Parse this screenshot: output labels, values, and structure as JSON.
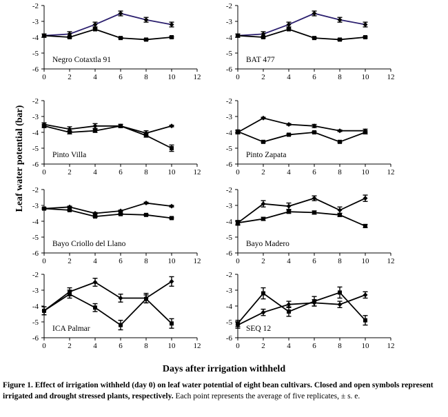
{
  "figure": {
    "ylabel": "Leaf water potential (bar)",
    "xlabel": "Days after irrigation withheld",
    "caption_bold": "Figure 1. Effect of irrigation withheld (day 0) on leaf water potential of eight bean cultivars. Closed and open symbols represent irrigated and drought stressed plants, respectively.",
    "caption_rest": " Each point represents the average of five replicates, ± s. e."
  },
  "colors": {
    "line": "#000000",
    "accent_line": "#2b1f6e",
    "axis": "#000000"
  },
  "chart_data": [
    {
      "type": "line",
      "title": "Negro Cotaxtla 91",
      "x_ticks": [
        0,
        2,
        4,
        6,
        8,
        10,
        12
      ],
      "y_ticks": [
        -2,
        -3,
        -4,
        -5,
        -6
      ],
      "xlim": [
        0,
        12
      ],
      "ylim": [
        -6,
        -2
      ],
      "series": [
        {
          "marker": "closed",
          "x": [
            0,
            2,
            4,
            6,
            8,
            10
          ],
          "values": [
            -3.9,
            -3.8,
            -3.2,
            -2.5,
            -2.9,
            -3.2
          ],
          "errors": [
            0.1,
            0.15,
            0.15,
            0.15,
            0.15,
            0.15
          ]
        },
        {
          "marker": "open",
          "x": [
            0,
            2,
            4,
            6,
            8,
            10
          ],
          "values": [
            -3.9,
            -4.0,
            -3.5,
            -4.05,
            -4.15,
            -4.0
          ],
          "errors": [
            0.1,
            0.05,
            0.05,
            0.05,
            0.05,
            0.05
          ]
        }
      ]
    },
    {
      "type": "line",
      "title": "BAT 477",
      "x_ticks": [
        0,
        2,
        4,
        6,
        8,
        10,
        12
      ],
      "y_ticks": [
        -2,
        -3,
        -4,
        -5,
        -6
      ],
      "xlim": [
        0,
        12
      ],
      "ylim": [
        -6,
        -2
      ],
      "series": [
        {
          "marker": "closed",
          "x": [
            0,
            2,
            4,
            6,
            8,
            10
          ],
          "values": [
            -3.9,
            -3.8,
            -3.2,
            -2.5,
            -2.9,
            -3.2
          ],
          "errors": [
            0.1,
            0.15,
            0.15,
            0.15,
            0.15,
            0.15
          ]
        },
        {
          "marker": "open",
          "x": [
            0,
            2,
            4,
            6,
            8,
            10
          ],
          "values": [
            -3.9,
            -4.0,
            -3.5,
            -4.05,
            -4.15,
            -4.0
          ],
          "errors": [
            0.1,
            0.05,
            0.05,
            0.05,
            0.05,
            0.05
          ]
        }
      ]
    },
    {
      "type": "line",
      "title": "Pinto Villa",
      "x_ticks": [
        0,
        2,
        4,
        6,
        8,
        10,
        12
      ],
      "y_ticks": [
        -2,
        -3,
        -4,
        -5,
        -6
      ],
      "xlim": [
        0,
        12
      ],
      "ylim": [
        -6,
        -2
      ],
      "series": [
        {
          "marker": "closed",
          "x": [
            0,
            2,
            4,
            6,
            8,
            10
          ],
          "values": [
            -3.5,
            -3.8,
            -3.6,
            -3.6,
            -4.05,
            -3.6
          ],
          "errors": [
            0.1,
            0.15,
            0.15,
            0.1,
            0.15,
            0.05
          ]
        },
        {
          "marker": "open",
          "x": [
            0,
            2,
            4,
            6,
            8,
            10
          ],
          "values": [
            -3.6,
            -4.0,
            -3.9,
            -3.6,
            -4.2,
            -5.0
          ],
          "errors": [
            0.1,
            0.1,
            0.1,
            0.1,
            0.1,
            0.2
          ]
        }
      ]
    },
    {
      "type": "line",
      "title": "Pinto Zapata",
      "x_ticks": [
        0,
        2,
        4,
        6,
        8,
        10,
        12
      ],
      "y_ticks": [
        -2,
        -3,
        -4,
        -5,
        -6
      ],
      "xlim": [
        0,
        12
      ],
      "ylim": [
        -6,
        -2
      ],
      "series": [
        {
          "marker": "closed",
          "x": [
            0,
            2,
            4,
            6,
            8,
            10
          ],
          "values": [
            -4.0,
            -3.1,
            -3.5,
            -3.6,
            -3.9,
            -3.9
          ],
          "errors": [
            0.1,
            0.05,
            0.05,
            0.1,
            0.05,
            0.1
          ]
        },
        {
          "marker": "open",
          "x": [
            0,
            2,
            4,
            6,
            8,
            10
          ],
          "values": [
            -3.95,
            -4.6,
            -4.15,
            -4.0,
            -4.6,
            -4.0
          ],
          "errors": [
            0.1,
            0.05,
            0.05,
            0.05,
            0.05,
            0.1
          ]
        }
      ]
    },
    {
      "type": "line",
      "title": "Bayo Criollo del Llano",
      "x_ticks": [
        0,
        2,
        4,
        6,
        8,
        10,
        12
      ],
      "y_ticks": [
        -2,
        -3,
        -4,
        -5,
        -6
      ],
      "xlim": [
        0,
        12
      ],
      "ylim": [
        -6,
        -2
      ],
      "series": [
        {
          "marker": "closed",
          "x": [
            0,
            2,
            4,
            6,
            8,
            10
          ],
          "values": [
            -3.2,
            -3.1,
            -3.5,
            -3.35,
            -2.85,
            -3.05
          ],
          "errors": [
            0.05,
            0.05,
            0.05,
            0.05,
            0.05,
            0.05
          ]
        },
        {
          "marker": "open",
          "x": [
            0,
            2,
            4,
            6,
            8,
            10
          ],
          "values": [
            -3.2,
            -3.3,
            -3.7,
            -3.55,
            -3.6,
            -3.8
          ],
          "errors": [
            0.05,
            0.05,
            0.05,
            0.05,
            0.05,
            0.05
          ]
        }
      ]
    },
    {
      "type": "line",
      "title": "Bayo Madero",
      "x_ticks": [
        0,
        2,
        4,
        6,
        8,
        10,
        12
      ],
      "y_ticks": [
        -2,
        -3,
        -4,
        -5,
        -6
      ],
      "xlim": [
        0,
        12
      ],
      "ylim": [
        -6,
        -2
      ],
      "series": [
        {
          "marker": "closed",
          "x": [
            0,
            2,
            4,
            6,
            8,
            10
          ],
          "values": [
            -4.1,
            -2.9,
            -3.05,
            -2.55,
            -3.3,
            -2.55
          ],
          "errors": [
            0.1,
            0.2,
            0.2,
            0.15,
            0.2,
            0.2
          ]
        },
        {
          "marker": "open",
          "x": [
            0,
            2,
            4,
            6,
            8,
            10
          ],
          "values": [
            -4.1,
            -3.85,
            -3.4,
            -3.45,
            -3.6,
            -4.3
          ],
          "errors": [
            0.15,
            0.1,
            0.1,
            0.1,
            0.1,
            0.1
          ]
        }
      ]
    },
    {
      "type": "line",
      "title": "ICA Palmar",
      "x_ticks": [
        0,
        2,
        4,
        6,
        8,
        10,
        12
      ],
      "y_ticks": [
        -2,
        -3,
        -4,
        -5,
        -6
      ],
      "xlim": [
        0,
        12
      ],
      "ylim": [
        -6,
        -2
      ],
      "series": [
        {
          "marker": "closed",
          "x": [
            0,
            2,
            4,
            6,
            8,
            10
          ],
          "values": [
            -4.3,
            -3.1,
            -2.5,
            -3.5,
            -3.5,
            -2.45
          ],
          "errors": [
            0.25,
            0.25,
            0.25,
            0.25,
            0.3,
            0.3
          ]
        },
        {
          "marker": "open",
          "x": [
            0,
            2,
            4,
            6,
            8,
            10
          ],
          "values": [
            -4.3,
            -3.25,
            -4.1,
            -5.2,
            -3.55,
            -5.1
          ],
          "errors": [
            0.25,
            0.25,
            0.25,
            0.3,
            0.25,
            0.3
          ]
        }
      ]
    },
    {
      "type": "line",
      "title": "SEQ 12",
      "x_ticks": [
        0,
        2,
        4,
        6,
        8,
        10,
        12
      ],
      "y_ticks": [
        -2,
        -3,
        -4,
        -5,
        -6
      ],
      "xlim": [
        0,
        12
      ],
      "ylim": [
        -6,
        -2
      ],
      "series": [
        {
          "marker": "closed",
          "x": [
            0,
            2,
            4,
            6,
            8,
            10
          ],
          "values": [
            -5.2,
            -4.4,
            -3.9,
            -3.8,
            -3.9,
            -3.3
          ],
          "errors": [
            0.2,
            0.2,
            0.2,
            0.2,
            0.2,
            0.2
          ]
        },
        {
          "marker": "open",
          "x": [
            0,
            2,
            4,
            6,
            8,
            10
          ],
          "values": [
            -5.1,
            -3.2,
            -4.35,
            -3.7,
            -3.15,
            -4.9
          ],
          "errors": [
            0.2,
            0.35,
            0.3,
            0.3,
            0.35,
            0.3
          ]
        }
      ]
    }
  ]
}
